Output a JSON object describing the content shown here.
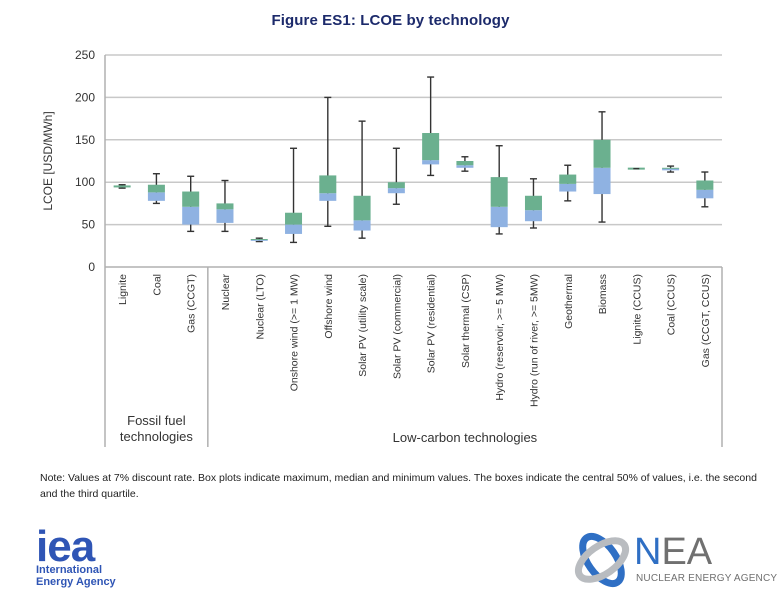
{
  "chart_data": {
    "type": "boxplot",
    "title": "Figure ES1: LCOE by technology",
    "ylabel": "LCOE [USD/MWh]",
    "xlabel": "",
    "ylim": [
      0,
      250
    ],
    "yticks": [
      0,
      50,
      100,
      150,
      200,
      250
    ],
    "grid": "horizontal",
    "colors": {
      "upper_box": "#6bb08f",
      "lower_box": "#8fb2e2",
      "whisker": "#333333",
      "grid": "#c8c8c8"
    },
    "groups": [
      {
        "label": "Fossil fuel technologies",
        "label_lines": [
          "Fossil fuel",
          "technologies"
        ],
        "count": 3
      },
      {
        "label": "Low-carbon technologies",
        "label_lines": [
          "Low-carbon technologies"
        ],
        "count": 15
      }
    ],
    "categories": [
      "Lignite",
      "Coal",
      "Gas (CCGT)",
      "Nuclear",
      "Nuclear (LTO)",
      "Onshore wind (>= 1 MW)",
      "Offshore wind",
      "Solar PV (utility scale)",
      "Solar PV (commercial)",
      "Solar PV (residential)",
      "Solar thermal (CSP)",
      "Hydro (reservoir, >= 5 MW)",
      "Hydro (run of river, >= 5MW)",
      "Geothermal",
      "Biomass",
      "Lignite (CCUS)",
      "Coal (CCUS)",
      "Gas (CCGT, CCUS)"
    ],
    "series": [
      {
        "name": "Lignite",
        "min": 93,
        "q1": 95,
        "median": 95,
        "q3": 96,
        "max": 97
      },
      {
        "name": "Coal",
        "min": 75,
        "q1": 78,
        "median": 88,
        "q3": 97,
        "max": 110
      },
      {
        "name": "Gas (CCGT)",
        "min": 42,
        "q1": 50,
        "median": 71,
        "q3": 89,
        "max": 107
      },
      {
        "name": "Nuclear",
        "min": 42,
        "q1": 52,
        "median": 68,
        "q3": 75,
        "max": 102
      },
      {
        "name": "Nuclear (LTO)",
        "min": 30,
        "q1": 31,
        "median": 32,
        "q3": 33,
        "max": 34
      },
      {
        "name": "Onshore wind (>= 1 MW)",
        "min": 29,
        "q1": 39,
        "median": 50,
        "q3": 64,
        "max": 140
      },
      {
        "name": "Offshore wind",
        "min": 48,
        "q1": 78,
        "median": 87,
        "q3": 108,
        "max": 200
      },
      {
        "name": "Solar PV (utility scale)",
        "min": 34,
        "q1": 43,
        "median": 55,
        "q3": 84,
        "max": 172
      },
      {
        "name": "Solar PV (commercial)",
        "min": 74,
        "q1": 87,
        "median": 93,
        "q3": 100,
        "max": 140
      },
      {
        "name": "Solar PV (residential)",
        "min": 108,
        "q1": 121,
        "median": 126,
        "q3": 158,
        "max": 224
      },
      {
        "name": "Solar thermal (CSP)",
        "min": 113,
        "q1": 117,
        "median": 120,
        "q3": 125,
        "max": 130
      },
      {
        "name": "Hydro (reservoir, >= 5 MW)",
        "min": 39,
        "q1": 47,
        "median": 71,
        "q3": 106,
        "max": 143
      },
      {
        "name": "Hydro (run of river, >= 5MW)",
        "min": 46,
        "q1": 54,
        "median": 67,
        "q3": 84,
        "max": 104
      },
      {
        "name": "Geothermal",
        "min": 78,
        "q1": 89,
        "median": 98,
        "q3": 109,
        "max": 120
      },
      {
        "name": "Biomass",
        "min": 53,
        "q1": 86,
        "median": 117,
        "q3": 150,
        "max": 183
      },
      {
        "name": "Lignite (CCUS)",
        "min": 116,
        "q1": 116,
        "median": 116,
        "q3": 116,
        "max": 116
      },
      {
        "name": "Coal (CCUS)",
        "min": 112,
        "q1": 114,
        "median": 116,
        "q3": 117,
        "max": 119
      },
      {
        "name": "Gas (CCGT, CCUS)",
        "min": 71,
        "q1": 81,
        "median": 91,
        "q3": 102,
        "max": 112
      }
    ]
  },
  "note": "Note: Values at 7% discount rate. Box plots indicate maximum, median and minimum values. The boxes indicate the central 50% of values, i.e. the second and the third quartile.",
  "logos": {
    "iea": {
      "mark": "iea",
      "line1": "International",
      "line2": "Energy Agency",
      "color": "#2f55b5"
    },
    "nea": {
      "mark_n": "N",
      "mark_ea": "EA",
      "subtitle": "NUCLEAR ENERGY AGENCY",
      "color_blue": "#2f6fc4",
      "color_grey": "#707070"
    }
  }
}
